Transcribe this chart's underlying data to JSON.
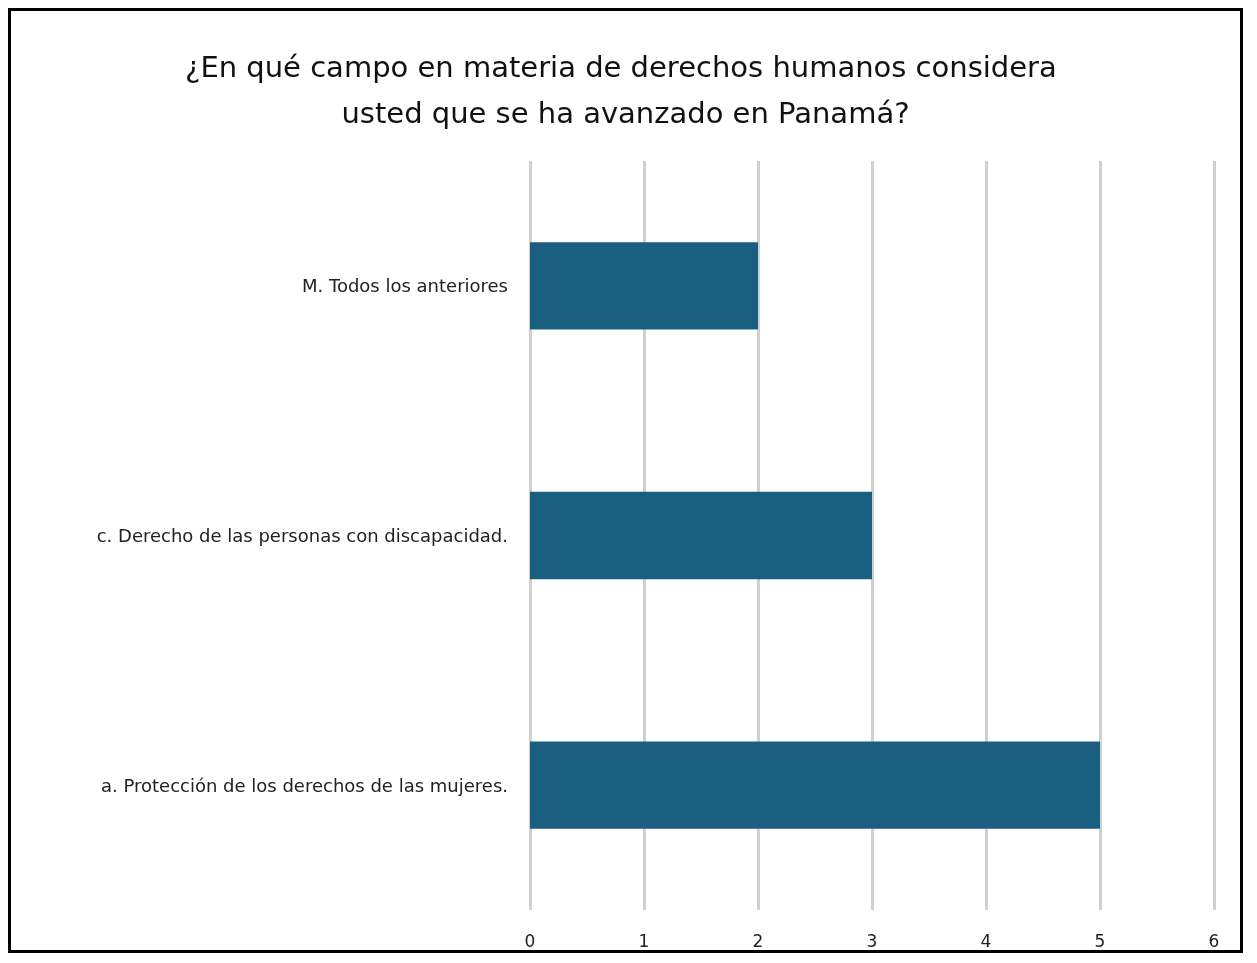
{
  "chart_data": {
    "type": "bar",
    "orientation": "horizontal",
    "title": "¿En qué campo en materia de derechos humanos considera usted que se ha avanzado en Panamá?",
    "categories": [
      "M. Todos los anteriores",
      "c. Derecho de las personas con discapacidad.",
      "a. Protección de los derechos de las mujeres."
    ],
    "values": [
      2,
      3,
      5
    ],
    "color": "#1a5f80",
    "xlim": [
      0,
      6
    ],
    "xticks": [
      0,
      1,
      2,
      3,
      4,
      5,
      6
    ],
    "grid": "x"
  }
}
